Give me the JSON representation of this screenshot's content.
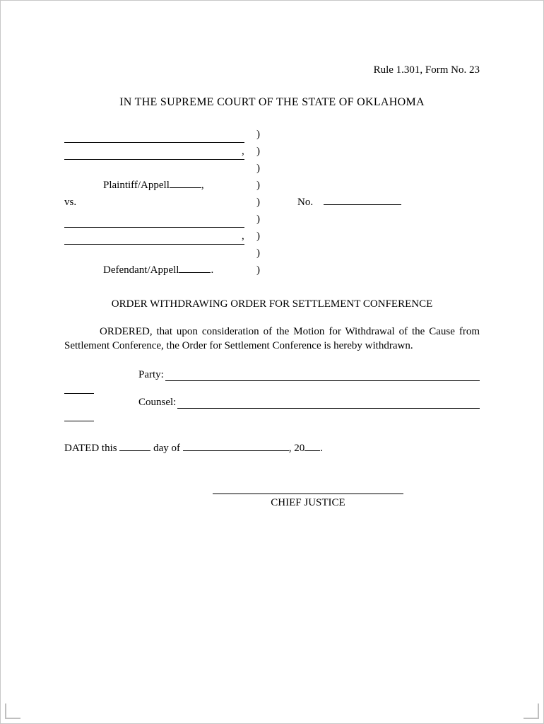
{
  "rule_ref": "Rule 1.301, Form No. 23",
  "court_heading": "IN THE SUPREME COURT OF THE STATE OF OKLAHOMA",
  "caption": {
    "plaintiff_label_prefix": "Plaintiff/Appell",
    "vs_label": "vs.",
    "no_label": "No.",
    "defendant_label_prefix": "Defendant/Appell"
  },
  "order_title": "ORDER WITHDRAWING ORDER FOR SETTLEMENT CONFERENCE",
  "body_text": "ORDERED, that upon consideration of the Motion for Withdrawal of the Cause from Settlement Conference, the Order for Settlement Conference is hereby withdrawn.",
  "party_label": "Party:",
  "counsel_label": "Counsel:",
  "dated": {
    "prefix": "DATED this",
    "day_of": "day of",
    "year_prefix": ", 20",
    "period": "."
  },
  "signature_label": "CHIEF JUSTICE"
}
